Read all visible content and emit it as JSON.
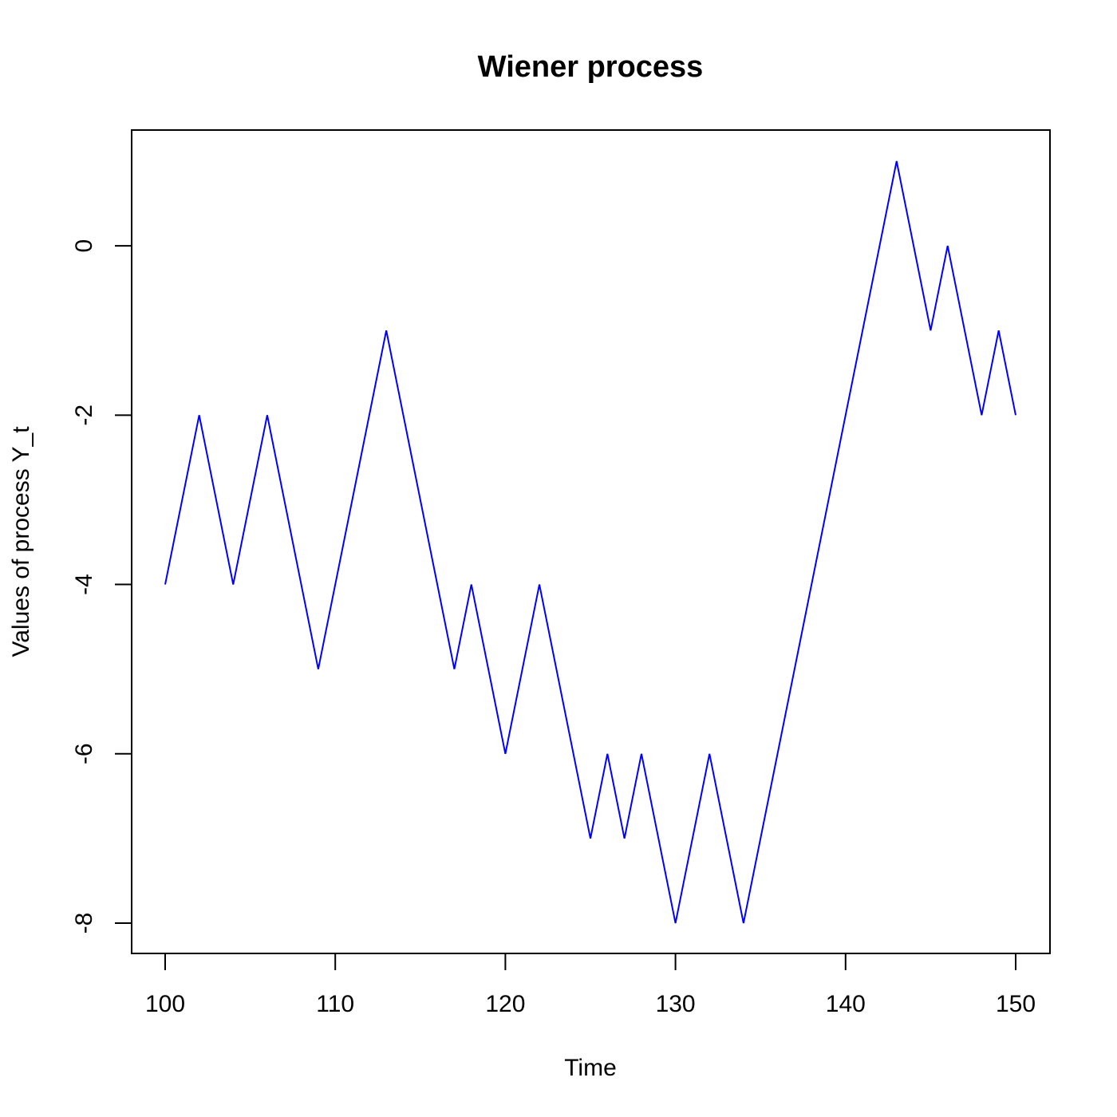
{
  "chart_data": {
    "type": "line",
    "title": "Wiener process",
    "xlabel": "Time",
    "ylabel": "Values of process Y_t",
    "xlim": [
      100,
      150
    ],
    "ylim": [
      -8,
      1
    ],
    "xticks": [
      100,
      110,
      120,
      130,
      140,
      150
    ],
    "yticks": [
      -8,
      -6,
      -4,
      -2,
      0
    ],
    "grid": false,
    "series": [
      {
        "color": "#0000ff",
        "x": [
          100,
          102,
          104,
          106,
          109,
          113,
          117,
          118,
          120,
          122,
          125,
          126,
          127,
          128,
          130,
          132,
          134,
          143,
          145,
          146,
          148,
          149,
          150
        ],
        "y": [
          -4,
          -2,
          -4,
          -2,
          -5,
          -1,
          -5,
          -4,
          -6,
          -4,
          -7,
          -6,
          -7,
          -6,
          -8,
          -6,
          -8,
          1,
          -1,
          0,
          -2,
          -1,
          -2
        ]
      }
    ]
  }
}
